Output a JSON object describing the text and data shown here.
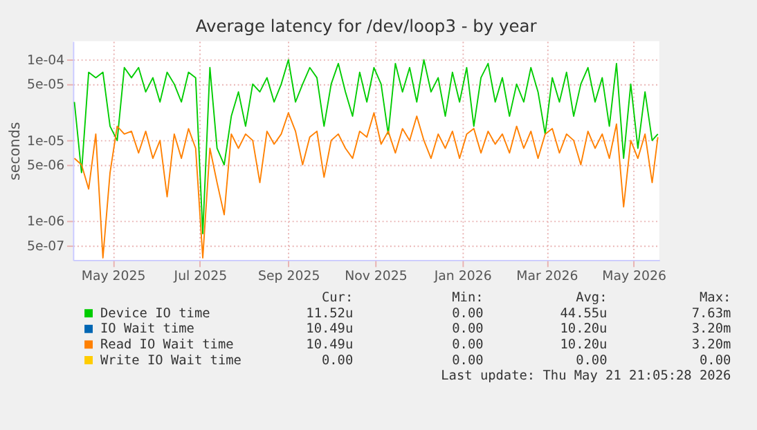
{
  "chart_data": {
    "type": "line",
    "title": "Average latency for /dev/loop3 - by year",
    "ylabel": "seconds",
    "x": [
      "2025-04-04",
      "2025-04-09",
      "2025-04-14",
      "2025-04-19",
      "2025-04-24",
      "2025-04-29",
      "2025-05-04",
      "2025-05-09",
      "2025-05-14",
      "2025-05-19",
      "2025-05-24",
      "2025-05-29",
      "2025-06-03",
      "2025-06-08",
      "2025-06-13",
      "2025-06-18",
      "2025-06-23",
      "2025-06-28",
      "2025-07-03",
      "2025-07-08",
      "2025-07-13",
      "2025-07-18",
      "2025-07-23",
      "2025-07-28",
      "2025-08-02",
      "2025-08-07",
      "2025-08-12",
      "2025-08-17",
      "2025-08-22",
      "2025-08-27",
      "2025-09-01",
      "2025-09-06",
      "2025-09-11",
      "2025-09-16",
      "2025-09-21",
      "2025-09-26",
      "2025-10-01",
      "2025-10-06",
      "2025-10-11",
      "2025-10-16",
      "2025-10-21",
      "2025-10-26",
      "2025-10-31",
      "2025-11-05",
      "2025-11-10",
      "2025-11-15",
      "2025-11-20",
      "2025-11-25",
      "2025-11-30",
      "2025-12-05",
      "2025-12-10",
      "2025-12-15",
      "2025-12-20",
      "2025-12-25",
      "2025-12-30",
      "2026-01-04",
      "2026-01-09",
      "2026-01-14",
      "2026-01-19",
      "2026-01-24",
      "2026-01-29",
      "2026-02-03",
      "2026-02-08",
      "2026-02-13",
      "2026-02-18",
      "2026-02-23",
      "2026-02-28",
      "2026-03-05",
      "2026-03-10",
      "2026-03-15",
      "2026-03-20",
      "2026-03-25",
      "2026-03-30",
      "2026-04-04",
      "2026-04-09",
      "2026-04-14",
      "2026-04-19",
      "2026-04-24",
      "2026-04-29",
      "2026-05-04",
      "2026-05-09",
      "2026-05-14",
      "2026-05-18"
    ],
    "series": [
      {
        "name": "Device IO time",
        "color": "#00cc00",
        "values": [
          3e-05,
          4e-06,
          7e-05,
          6e-05,
          7e-05,
          1.5e-05,
          1e-05,
          8e-05,
          6e-05,
          8e-05,
          4e-05,
          6e-05,
          3e-05,
          7e-05,
          5e-05,
          3e-05,
          7e-05,
          6e-05,
          7e-07,
          8e-05,
          8e-06,
          5e-06,
          2e-05,
          4e-05,
          1.5e-05,
          5e-05,
          4e-05,
          6e-05,
          3e-05,
          5e-05,
          0.0001,
          3e-05,
          5e-05,
          8e-05,
          6e-05,
          1.5e-05,
          5e-05,
          9e-05,
          4e-05,
          2e-05,
          7e-05,
          3e-05,
          8e-05,
          5e-05,
          1.2e-05,
          9e-05,
          4e-05,
          8e-05,
          3e-05,
          0.0001,
          4e-05,
          6e-05,
          2e-05,
          7e-05,
          3e-05,
          8e-05,
          1.5e-05,
          6e-05,
          9e-05,
          3e-05,
          6e-05,
          2e-05,
          5e-05,
          3e-05,
          8e-05,
          4e-05,
          1.2e-05,
          6e-05,
          3e-05,
          7e-05,
          2e-05,
          5e-05,
          8e-05,
          3e-05,
          6e-05,
          1.5e-05,
          9e-05,
          6e-06,
          5e-05,
          8e-06,
          4e-05,
          1e-05,
          1.2e-05
        ]
      },
      {
        "name": "IO Wait time",
        "color": "#0066b3",
        "values": [
          null,
          null,
          null,
          null,
          null,
          null,
          null,
          null,
          null,
          null,
          null,
          null,
          null,
          null,
          null,
          null,
          null,
          null,
          null,
          null,
          null,
          null,
          null,
          null,
          null,
          null,
          null,
          null,
          null,
          null,
          null,
          null,
          null,
          null,
          null,
          null,
          null,
          null,
          null,
          null,
          null,
          null,
          null,
          null,
          null,
          null,
          null,
          null,
          null,
          null,
          null,
          null,
          null,
          null,
          null,
          null,
          null,
          null,
          null,
          null,
          null,
          null,
          null,
          null,
          null,
          null,
          null,
          null,
          null,
          null,
          null,
          null,
          null,
          null,
          null,
          null,
          null,
          null,
          null,
          null,
          null,
          null,
          null
        ]
      },
      {
        "name": "Read IO Wait time",
        "color": "#ff8000",
        "values": [
          6e-06,
          5e-06,
          2.5e-06,
          1.2e-05,
          3.5e-07,
          4e-06,
          1.5e-05,
          1.2e-05,
          1.3e-05,
          7e-06,
          1.3e-05,
          6e-06,
          1e-05,
          2e-06,
          1.2e-05,
          6e-06,
          1.4e-05,
          8e-06,
          3.5e-07,
          8e-06,
          3e-06,
          1.2e-06,
          1.2e-05,
          8e-06,
          1.2e-05,
          1e-05,
          3e-06,
          1.3e-05,
          9e-06,
          1.2e-05,
          2.2e-05,
          1.3e-05,
          5e-06,
          1.1e-05,
          1.3e-05,
          3.5e-06,
          1e-05,
          1.2e-05,
          8e-06,
          6e-06,
          1.3e-05,
          1.1e-05,
          2.2e-05,
          9e-06,
          1.3e-05,
          7e-06,
          1.4e-05,
          1e-05,
          2e-05,
          1e-05,
          6e-06,
          1.2e-05,
          8e-06,
          1.3e-05,
          6e-06,
          1.2e-05,
          1.4e-05,
          7e-06,
          1.3e-05,
          9e-06,
          1.2e-05,
          7e-06,
          1.5e-05,
          8e-06,
          1.3e-05,
          6e-06,
          1.2e-05,
          1.4e-05,
          7e-06,
          1.2e-05,
          1e-05,
          5e-06,
          1.3e-05,
          8e-06,
          1.2e-05,
          6e-06,
          1.6e-05,
          1.5e-06,
          1e-05,
          6e-06,
          1.2e-05,
          3e-06,
          1.1e-05
        ]
      },
      {
        "name": "Write IO Wait time",
        "color": "#ffcc00",
        "values": [
          null,
          null,
          null,
          null,
          null,
          null,
          null,
          null,
          null,
          null,
          null,
          null,
          null,
          null,
          null,
          null,
          null,
          null,
          null,
          null,
          null,
          null,
          null,
          null,
          null,
          null,
          null,
          null,
          null,
          null,
          null,
          null,
          null,
          null,
          null,
          null,
          null,
          null,
          null,
          null,
          null,
          null,
          null,
          null,
          null,
          null,
          null,
          null,
          null,
          null,
          null,
          null,
          null,
          null,
          null,
          null,
          null,
          null,
          null,
          null,
          null,
          null,
          null,
          null,
          null,
          null,
          null,
          null,
          null,
          null,
          null,
          null,
          null,
          null,
          null,
          null,
          null,
          null,
          null,
          null,
          null,
          null,
          null
        ]
      }
    ],
    "log": true,
    "xlim": [
      "2025-04-03",
      "2026-05-19"
    ],
    "xticks": [
      {
        "value": "2025-05-01",
        "label": "May 2025"
      },
      {
        "value": "2025-07-01",
        "label": "Jul 2025"
      },
      {
        "value": "2025-09-01",
        "label": "Sep 2025"
      },
      {
        "value": "2025-11-01",
        "label": "Nov 2025"
      },
      {
        "value": "2026-01-01",
        "label": "Jan 2026"
      },
      {
        "value": "2026-03-01",
        "label": "Mar 2026"
      },
      {
        "value": "2026-05-01",
        "label": "May 2026"
      }
    ],
    "ylim": [
      3.3e-07,
      0.00017
    ],
    "yticks": [
      {
        "value": 5e-07,
        "label": "5e-07"
      },
      {
        "value": 1e-06,
        "label": "1e-06"
      },
      {
        "value": 5e-06,
        "label": "5e-06"
      },
      {
        "value": 1e-05,
        "label": "1e-05"
      },
      {
        "value": 5e-05,
        "label": "5e-05"
      },
      {
        "value": 0.0001,
        "label": "1e-04"
      }
    ],
    "grid": true,
    "legend": "bottom",
    "line_style": "solid",
    "annotations": [
      "Cur:",
      "Min:",
      "Avg:",
      "Max:",
      "11.52u",
      "0.00",
      "44.55u",
      "7.63m",
      "10.49u",
      "0.00",
      "10.20u",
      "3.20m",
      "10.49u",
      "0.00",
      "10.20u",
      "3.20m",
      "0.00",
      "0.00",
      "0.00",
      "0.00",
      "Last update: Thu May 21 21:05:28 2026"
    ]
  }
}
